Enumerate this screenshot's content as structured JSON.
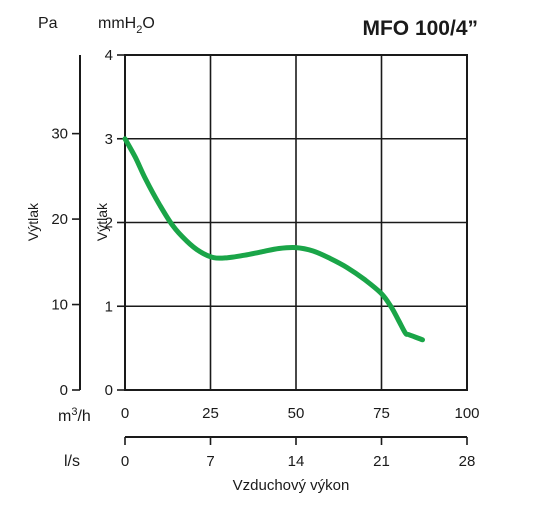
{
  "chart_data": {
    "type": "line",
    "title": "MFO 100/4”",
    "y_units": {
      "left": "Pa",
      "right_prefix": "mmH",
      "right_sub": "2",
      "right_suffix": "O"
    },
    "ylabel_left": "Výtlak",
    "ylabel_right": "Výtlak",
    "xlabel": "Vzduchový výkon",
    "x_axis_m3h": {
      "unit_prefix": "m",
      "unit_sup": "3",
      "unit_suffix": "/h",
      "ticks": [
        "0",
        "25",
        "50",
        "75",
        "100"
      ],
      "range": [
        0,
        100
      ]
    },
    "x_axis_ls": {
      "unit": "l/s",
      "ticks": [
        "0",
        "7",
        "14",
        "21",
        "28"
      ],
      "range": [
        0,
        28
      ]
    },
    "y_axis_pa": {
      "ticks": [
        "0",
        "10",
        "20",
        "30"
      ],
      "range": [
        0,
        39.2
      ]
    },
    "y_axis_mmh2o": {
      "ticks": [
        "0",
        "1",
        "2",
        "3",
        "4"
      ],
      "range": [
        0,
        4
      ]
    },
    "grid": true,
    "line_color": "#1aa548",
    "series": [
      {
        "x_m3h": [
          0,
          3,
          6,
          10,
          14,
          18,
          22,
          26,
          30,
          35,
          40,
          45,
          50,
          55,
          60,
          65,
          70,
          75,
          78,
          80,
          82,
          83,
          87
        ],
        "y_mmh2o": [
          3.0,
          2.78,
          2.52,
          2.22,
          1.96,
          1.78,
          1.65,
          1.58,
          1.58,
          1.61,
          1.65,
          1.69,
          1.7,
          1.66,
          1.57,
          1.46,
          1.32,
          1.15,
          0.98,
          0.83,
          0.68,
          0.66,
          0.6
        ]
      }
    ]
  }
}
